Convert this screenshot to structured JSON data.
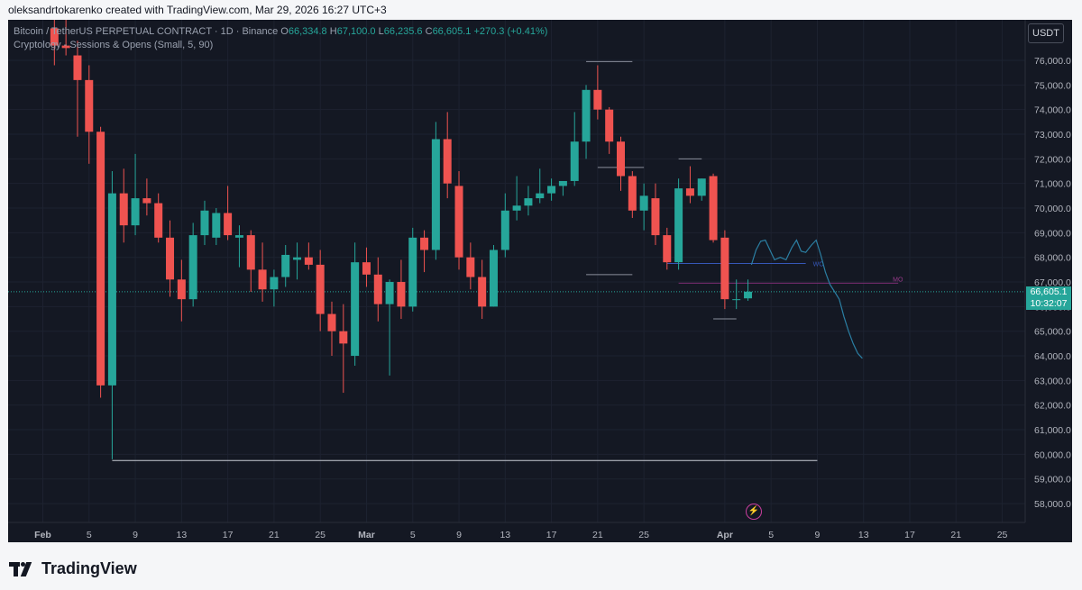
{
  "header": {
    "credit": "oleksandrtokarenko created with TradingView.com, Mar 29, 2026 16:27 UTC+3"
  },
  "legend": {
    "symbol": "Bitcoin / TetherUS PERPETUAL CONTRACT · 1D · Binance",
    "o_label": "O",
    "o_value": "66,334.8",
    "h_label": "H",
    "h_value": "67,100.0",
    "l_label": "L",
    "l_value": "66,235.6",
    "c_label": "C",
    "c_value": "66,605.1",
    "change": "+270.3 (+0.41%)",
    "indicator": "Cryptology - Sessions & Opens (Small, 5, 90)"
  },
  "currency_button": "USDT",
  "price_tag": {
    "price": "66,605.1",
    "countdown": "10:32:07"
  },
  "footer": {
    "brand": "TradingView"
  },
  "colors": {
    "background": "#141823",
    "up": "#26a69a",
    "down": "#ef5350",
    "projection": "#2b7fa3",
    "wo_line": "#3657b8",
    "mo_line": "#7b2d72"
  },
  "chart_data": {
    "type": "candlestick",
    "y_ticks": [
      58000,
      59000,
      60000,
      61000,
      62000,
      63000,
      64000,
      65000,
      66000,
      67000,
      68000,
      69000,
      70000,
      71000,
      72000,
      73000,
      74000,
      75000,
      76000
    ],
    "y_tick_labels": [
      "58,000.0",
      "59,000.0",
      "60,000.0",
      "61,000.0",
      "62,000.0",
      "63,000.0",
      "64,000.0",
      "65,000.0",
      "66,000.0",
      "67,000.0",
      "68,000.0",
      "69,000.0",
      "70,000.0",
      "71,000.0",
      "72,000.0",
      "73,000.0",
      "74,000.0",
      "75,000.0",
      "76,000.0"
    ],
    "x_ticks": [
      {
        "day": 0,
        "label": "Feb",
        "bold": true
      },
      {
        "day": 4,
        "label": "5"
      },
      {
        "day": 8,
        "label": "9"
      },
      {
        "day": 12,
        "label": "13"
      },
      {
        "day": 16,
        "label": "17"
      },
      {
        "day": 20,
        "label": "21"
      },
      {
        "day": 24,
        "label": "25"
      },
      {
        "day": 28,
        "label": "Mar",
        "bold": true
      },
      {
        "day": 32,
        "label": "5"
      },
      {
        "day": 36,
        "label": "9"
      },
      {
        "day": 40,
        "label": "13"
      },
      {
        "day": 44,
        "label": "17"
      },
      {
        "day": 48,
        "label": "21"
      },
      {
        "day": 52,
        "label": "25"
      },
      {
        "day": 59,
        "label": "Apr",
        "bold": true
      },
      {
        "day": 63,
        "label": "5"
      },
      {
        "day": 67,
        "label": "9"
      },
      {
        "day": 71,
        "label": "13"
      },
      {
        "day": 75,
        "label": "17"
      },
      {
        "day": 79,
        "label": "21"
      },
      {
        "day": 83,
        "label": "25"
      }
    ],
    "candles": [
      {
        "d": 1,
        "o": 77300,
        "h": 78500,
        "l": 75800,
        "c": 76600
      },
      {
        "d": 2,
        "o": 76600,
        "h": 78000,
        "l": 76200,
        "c": 76500
      },
      {
        "d": 3,
        "o": 76200,
        "h": 76800,
        "l": 72900,
        "c": 75200
      },
      {
        "d": 4,
        "o": 75200,
        "h": 75800,
        "l": 71800,
        "c": 73100
      },
      {
        "d": 5,
        "o": 73100,
        "h": 73300,
        "l": 62300,
        "c": 62800
      },
      {
        "d": 6,
        "o": 62800,
        "h": 71500,
        "l": 59800,
        "c": 70600
      },
      {
        "d": 7,
        "o": 70600,
        "h": 71600,
        "l": 68600,
        "c": 69300
      },
      {
        "d": 8,
        "o": 69300,
        "h": 72200,
        "l": 68900,
        "c": 70400
      },
      {
        "d": 9,
        "o": 70400,
        "h": 71200,
        "l": 69700,
        "c": 70200
      },
      {
        "d": 10,
        "o": 70200,
        "h": 70600,
        "l": 68600,
        "c": 68800
      },
      {
        "d": 11,
        "o": 68800,
        "h": 69500,
        "l": 66400,
        "c": 67100
      },
      {
        "d": 12,
        "o": 67100,
        "h": 67900,
        "l": 65400,
        "c": 66300
      },
      {
        "d": 13,
        "o": 66300,
        "h": 69400,
        "l": 66000,
        "c": 68900
      },
      {
        "d": 14,
        "o": 68900,
        "h": 70300,
        "l": 68500,
        "c": 69900
      },
      {
        "d": 15,
        "o": 68800,
        "h": 70000,
        "l": 68500,
        "c": 69800
      },
      {
        "d": 16,
        "o": 69800,
        "h": 70900,
        "l": 68700,
        "c": 68900
      },
      {
        "d": 17,
        "o": 68800,
        "h": 69300,
        "l": 67600,
        "c": 68900
      },
      {
        "d": 18,
        "o": 68900,
        "h": 69100,
        "l": 66600,
        "c": 67500
      },
      {
        "d": 19,
        "o": 67500,
        "h": 68600,
        "l": 66200,
        "c": 66700
      },
      {
        "d": 20,
        "o": 66700,
        "h": 67500,
        "l": 66000,
        "c": 67200
      },
      {
        "d": 21,
        "o": 67200,
        "h": 68500,
        "l": 66800,
        "c": 68100
      },
      {
        "d": 22,
        "o": 67900,
        "h": 68600,
        "l": 67100,
        "c": 68000
      },
      {
        "d": 23,
        "o": 68000,
        "h": 68600,
        "l": 67500,
        "c": 67700
      },
      {
        "d": 24,
        "o": 67700,
        "h": 68300,
        "l": 65000,
        "c": 65700
      },
      {
        "d": 25,
        "o": 65700,
        "h": 66200,
        "l": 64000,
        "c": 65000
      },
      {
        "d": 26,
        "o": 65000,
        "h": 66100,
        "l": 62500,
        "c": 64500
      },
      {
        "d": 27,
        "o": 64000,
        "h": 68600,
        "l": 63600,
        "c": 67800
      },
      {
        "d": 28,
        "o": 67800,
        "h": 68400,
        "l": 66800,
        "c": 67300
      },
      {
        "d": 29,
        "o": 67300,
        "h": 68000,
        "l": 65400,
        "c": 66100
      },
      {
        "d": 30,
        "o": 66100,
        "h": 67100,
        "l": 63200,
        "c": 67000
      },
      {
        "d": 31,
        "o": 67000,
        "h": 67900,
        "l": 65500,
        "c": 66000
      },
      {
        "d": 32,
        "o": 66000,
        "h": 69200,
        "l": 65800,
        "c": 68800
      },
      {
        "d": 33,
        "o": 68800,
        "h": 69100,
        "l": 67400,
        "c": 68300
      },
      {
        "d": 34,
        "o": 68300,
        "h": 73500,
        "l": 67900,
        "c": 72800
      },
      {
        "d": 35,
        "o": 72800,
        "h": 73900,
        "l": 70400,
        "c": 71000
      },
      {
        "d": 36,
        "o": 70900,
        "h": 71500,
        "l": 67500,
        "c": 68000
      },
      {
        "d": 37,
        "o": 68000,
        "h": 68600,
        "l": 66700,
        "c": 67200
      },
      {
        "d": 38,
        "o": 67200,
        "h": 67900,
        "l": 65500,
        "c": 66000
      },
      {
        "d": 39,
        "o": 66000,
        "h": 68500,
        "l": 66000,
        "c": 68300
      },
      {
        "d": 40,
        "o": 68300,
        "h": 70600,
        "l": 68000,
        "c": 69900
      },
      {
        "d": 41,
        "o": 69900,
        "h": 71300,
        "l": 69500,
        "c": 70100
      },
      {
        "d": 42,
        "o": 70100,
        "h": 70900,
        "l": 69700,
        "c": 70400
      },
      {
        "d": 43,
        "o": 70400,
        "h": 71600,
        "l": 70200,
        "c": 70600
      },
      {
        "d": 44,
        "o": 70600,
        "h": 71200,
        "l": 70300,
        "c": 70900
      },
      {
        "d": 45,
        "o": 70900,
        "h": 71000,
        "l": 70500,
        "c": 71100
      },
      {
        "d": 46,
        "o": 71100,
        "h": 73900,
        "l": 70900,
        "c": 72700
      },
      {
        "d": 47,
        "o": 72700,
        "h": 75000,
        "l": 72000,
        "c": 74800
      },
      {
        "d": 48,
        "o": 74800,
        "h": 75800,
        "l": 73600,
        "c": 74000
      },
      {
        "d": 49,
        "o": 74000,
        "h": 74100,
        "l": 72200,
        "c": 72700
      },
      {
        "d": 50,
        "o": 72700,
        "h": 72900,
        "l": 70700,
        "c": 71300
      },
      {
        "d": 51,
        "o": 71300,
        "h": 71500,
        "l": 69600,
        "c": 69900
      },
      {
        "d": 52,
        "o": 69900,
        "h": 71000,
        "l": 69100,
        "c": 70500
      },
      {
        "d": 53,
        "o": 70400,
        "h": 71000,
        "l": 68500,
        "c": 68900
      },
      {
        "d": 54,
        "o": 68900,
        "h": 69200,
        "l": 67500,
        "c": 67800
      },
      {
        "d": 55,
        "o": 67800,
        "h": 71200,
        "l": 67500,
        "c": 70800
      },
      {
        "d": 56,
        "o": 70800,
        "h": 71700,
        "l": 70200,
        "c": 70500
      },
      {
        "d": 57,
        "o": 70500,
        "h": 71200,
        "l": 70300,
        "c": 71200
      },
      {
        "d": 58,
        "o": 71300,
        "h": 71400,
        "l": 68600,
        "c": 68700
      },
      {
        "d": 59,
        "o": 68800,
        "h": 69100,
        "l": 65900,
        "c": 66300
      },
      {
        "d": 60,
        "o": 66300,
        "h": 67100,
        "l": 65900,
        "c": 66300
      },
      {
        "d": 61,
        "o": 66334.8,
        "h": 67100,
        "l": 66235.6,
        "c": 66605.1
      }
    ],
    "levels": [
      {
        "name": "monthly-low-line",
        "price": 59750,
        "from": 6,
        "to": 67,
        "color": "#c8ccd4"
      },
      {
        "name": "high-line",
        "price": 75950,
        "from": 47,
        "to": 51,
        "color": "#8a8f9c"
      },
      {
        "name": "mid-line-1",
        "price": 71650,
        "from": 48,
        "to": 52,
        "color": "#8a8f9c"
      },
      {
        "name": "mid-line-2",
        "price": 72000,
        "from": 55,
        "to": 57,
        "color": "#8a8f9c"
      },
      {
        "name": "mid-line-3",
        "price": 67300,
        "from": 47,
        "to": 51,
        "color": "#8a8f9c"
      },
      {
        "name": "daily-low-line",
        "price": 65500,
        "from": 58,
        "to": 60,
        "color": "#8a8f9c"
      }
    ],
    "wo": {
      "label": "WO",
      "price": 67750,
      "from": 54,
      "to": 66
    },
    "mo": {
      "label": "MO",
      "price": 66950,
      "from": 55,
      "to": 74
    },
    "last_price": 66605.1,
    "projection": [
      {
        "d": 61.3,
        "p": 67700
      },
      {
        "d": 61.7,
        "p": 68300
      },
      {
        "d": 62.1,
        "p": 68650
      },
      {
        "d": 62.5,
        "p": 68700
      },
      {
        "d": 62.9,
        "p": 68300
      },
      {
        "d": 63.3,
        "p": 67900
      },
      {
        "d": 63.8,
        "p": 68000
      },
      {
        "d": 64.3,
        "p": 67900
      },
      {
        "d": 64.8,
        "p": 68400
      },
      {
        "d": 65.2,
        "p": 68700
      },
      {
        "d": 65.6,
        "p": 68250
      },
      {
        "d": 66.0,
        "p": 68200
      },
      {
        "d": 66.5,
        "p": 68500
      },
      {
        "d": 66.9,
        "p": 68700
      },
      {
        "d": 67.3,
        "p": 68100
      },
      {
        "d": 67.7,
        "p": 67400
      },
      {
        "d": 68.1,
        "p": 66900
      },
      {
        "d": 68.5,
        "p": 66600
      },
      {
        "d": 68.9,
        "p": 66300
      },
      {
        "d": 69.3,
        "p": 65600
      },
      {
        "d": 69.7,
        "p": 65000
      },
      {
        "d": 70.1,
        "p": 64500
      },
      {
        "d": 70.5,
        "p": 64100
      },
      {
        "d": 70.9,
        "p": 63900
      }
    ]
  }
}
